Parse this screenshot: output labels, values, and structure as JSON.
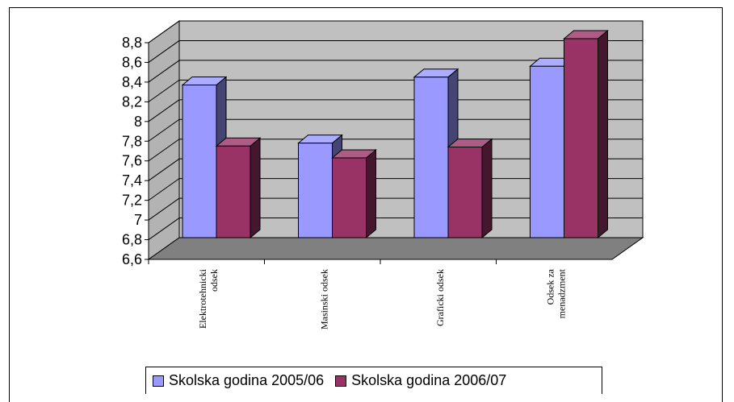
{
  "chart_data": {
    "type": "bar",
    "title": "",
    "xlabel": "",
    "ylabel": "",
    "ylim": [
      6.6,
      8.8
    ],
    "yticks": [
      "6,6",
      "6,8",
      "7",
      "7,2",
      "7,4",
      "7,6",
      "7,8",
      "8",
      "8,2",
      "8,4",
      "8,6",
      "8,8"
    ],
    "categories": [
      [
        "Elektrotehnicki",
        "odsek"
      ],
      [
        "Masinski odsek"
      ],
      [
        "Graficki odsek"
      ],
      [
        "Odsek za",
        "menadzment"
      ]
    ],
    "series": [
      {
        "name": "Skolska godina 2005/06",
        "values": [
          8.15,
          7.56,
          8.23,
          8.34
        ],
        "color": "#9999ff"
      },
      {
        "name": "Skolska godina 2006/07",
        "values": [
          7.53,
          7.41,
          7.52,
          8.62
        ],
        "color": "#993366"
      }
    ],
    "grid": true,
    "legend_position": "bottom"
  }
}
